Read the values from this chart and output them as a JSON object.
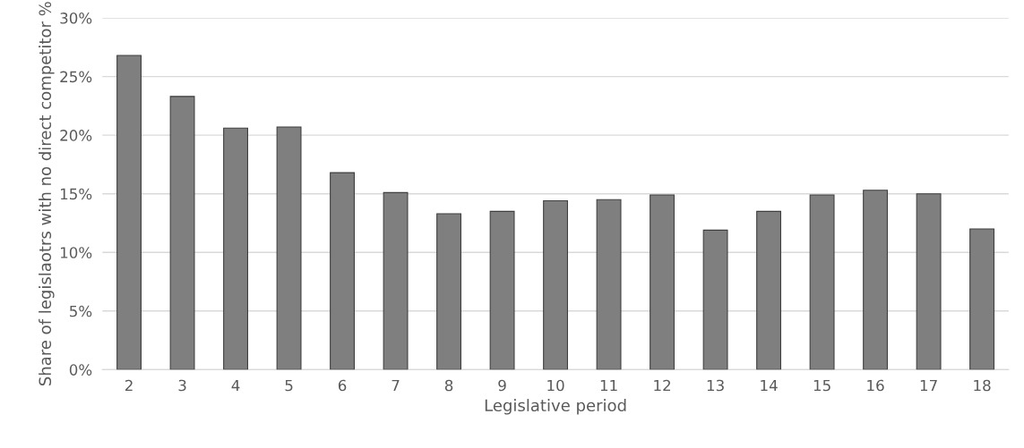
{
  "chart_data": {
    "type": "bar",
    "xlabel": "Legislative period",
    "ylabel": "Share of legislaotrs with no direct competitor %",
    "categories": [
      "2",
      "3",
      "4",
      "5",
      "6",
      "7",
      "8",
      "9",
      "10",
      "11",
      "12",
      "13",
      "14",
      "15",
      "16",
      "17",
      "18"
    ],
    "values": [
      26.8,
      23.3,
      20.6,
      20.7,
      16.8,
      15.1,
      13.3,
      13.5,
      14.4,
      14.5,
      14.9,
      11.9,
      13.5,
      14.9,
      15.3,
      15.0,
      12.0
    ],
    "color": "#7f7f7f",
    "ylim": [
      0,
      30
    ],
    "yticks": [
      {
        "value": 0,
        "label": "0%"
      },
      {
        "value": 5,
        "label": "5%"
      },
      {
        "value": 10,
        "label": "10%"
      },
      {
        "value": 15,
        "label": "15%"
      },
      {
        "value": 20,
        "label": "20%"
      },
      {
        "value": 25,
        "label": "25%"
      },
      {
        "value": 30,
        "label": "30%"
      }
    ],
    "grid": "y",
    "legend": false
  }
}
